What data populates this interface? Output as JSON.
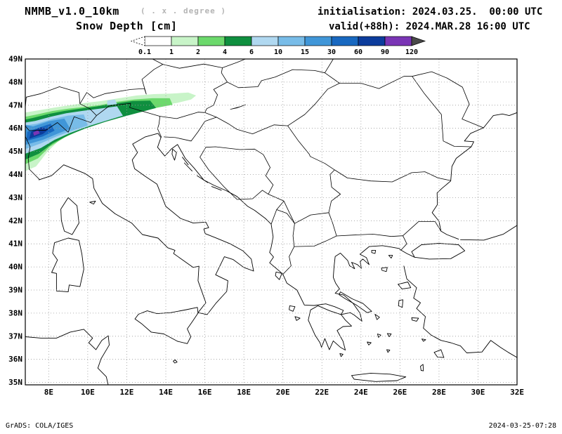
{
  "header": {
    "model": "NMMB_v1.0_10km",
    "resolution_note": "( . x . degree )",
    "variable": "Snow Depth [cm]",
    "init_label": "initialisation: 2024.03.25.  00:00 UTC",
    "valid_label": "valid(+88h): 2024.MAR.28 16:00 UTC"
  },
  "legend": {
    "ticks": [
      "0.1",
      "1",
      "2",
      "4",
      "6",
      "10",
      "15",
      "30",
      "60",
      "90",
      "120"
    ],
    "colors": [
      "#ffffff",
      "#c8f4c8",
      "#6cd96c",
      "#0f8f3f",
      "#b0d8f0",
      "#78bce8",
      "#4096d8",
      "#1868c0",
      "#0c3c9c",
      "#7a35b5"
    ],
    "below_min_color": "#ffffff",
    "above_max_color": "#4a4a4a"
  },
  "map": {
    "lat_labels": [
      "49N",
      "48N",
      "47N",
      "46N",
      "45N",
      "44N",
      "43N",
      "42N",
      "41N",
      "40N",
      "39N",
      "38N",
      "37N",
      "36N",
      "35N"
    ],
    "lon_labels": [
      "8E",
      "10E",
      "12E",
      "14E",
      "16E",
      "18E",
      "20E",
      "22E",
      "24E",
      "26E",
      "28E",
      "30E",
      "32E"
    ]
  },
  "footer": {
    "left": "GrADS: COLA/IGES",
    "right": "2024-03-25-07:28"
  },
  "chart_data": {
    "type": "heatmap",
    "title": "Snow Depth [cm]",
    "units": "cm",
    "legend_bins": [
      "<0.1",
      "0.1-1",
      "1-2",
      "2-4",
      "4-6",
      "6-10",
      "10-15",
      "15-30",
      "30-60",
      "60-90",
      "90-120",
      ">120"
    ],
    "lon_range": [
      "8E",
      "32E"
    ],
    "lat_range": [
      "35N",
      "49N"
    ],
    "observed": "Snow depth shading confined to the Alpine arc (about 7E-15E, 44.5N-47.5N): broad 0.1-6 cm green band, 6-30 cm blues over the western Alps, small cores above 60 cm near 7.5E/45.8N; remainder of the Balkans/Italy/Greece domain snow-free"
  }
}
